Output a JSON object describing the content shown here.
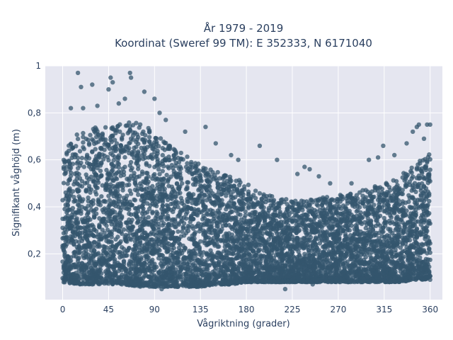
{
  "chart_data": {
    "type": "scatter",
    "title": "År 1979 - 2019",
    "subtitle": "Koordinat (Sweref 99 TM): E 352333, N 6171040",
    "xlabel": "Vågriktning (grader)",
    "ylabel": "Signifikant våghöjd (m)",
    "xlim": [
      -17,
      372
    ],
    "ylim": [
      0.005,
      1.0
    ],
    "x_ticks": [
      0,
      45,
      90,
      135,
      180,
      225,
      270,
      315,
      360
    ],
    "x_tick_labels": [
      "0",
      "45",
      "90",
      "135",
      "180",
      "225",
      "270",
      "315",
      "360"
    ],
    "y_ticks": [
      0.2,
      0.4,
      0.6,
      0.8,
      1.0
    ],
    "y_tick_labels": [
      "0,2",
      "0,4",
      "0,6",
      "0,8",
      "1"
    ],
    "grid": true,
    "legend": "none",
    "colors": {
      "marker": "#34566d",
      "plot_bg": "#e5e6f0",
      "grid": "#ffffff",
      "text": "#2a3f5f"
    },
    "envelope": {
      "x": [
        0,
        15,
        30,
        45,
        60,
        75,
        90,
        105,
        120,
        135,
        150,
        165,
        180,
        195,
        210,
        225,
        240,
        255,
        270,
        285,
        300,
        315,
        330,
        345,
        360
      ],
      "y_min": [
        0.08,
        0.07,
        0.07,
        0.07,
        0.07,
        0.06,
        0.06,
        0.06,
        0.06,
        0.06,
        0.07,
        0.07,
        0.08,
        0.08,
        0.08,
        0.08,
        0.08,
        0.08,
        0.08,
        0.08,
        0.08,
        0.08,
        0.08,
        0.09,
        0.09
      ],
      "y_max": [
        0.63,
        0.72,
        0.74,
        0.74,
        0.76,
        0.76,
        0.72,
        0.66,
        0.62,
        0.58,
        0.56,
        0.53,
        0.5,
        0.46,
        0.44,
        0.43,
        0.43,
        0.44,
        0.45,
        0.46,
        0.48,
        0.5,
        0.53,
        0.58,
        0.63
      ]
    },
    "outliers": [
      {
        "x": 15,
        "y": 0.97
      },
      {
        "x": 47,
        "y": 0.95
      },
      {
        "x": 66,
        "y": 0.97
      },
      {
        "x": 67,
        "y": 0.95
      },
      {
        "x": 49,
        "y": 0.93
      },
      {
        "x": 29,
        "y": 0.92
      },
      {
        "x": 18,
        "y": 0.91
      },
      {
        "x": 45,
        "y": 0.9
      },
      {
        "x": 80,
        "y": 0.89
      },
      {
        "x": 90,
        "y": 0.86
      },
      {
        "x": 61,
        "y": 0.86
      },
      {
        "x": 20,
        "y": 0.82
      },
      {
        "x": 8,
        "y": 0.82
      },
      {
        "x": 34,
        "y": 0.83
      },
      {
        "x": 55,
        "y": 0.84
      },
      {
        "x": 95,
        "y": 0.8
      },
      {
        "x": 101,
        "y": 0.77
      },
      {
        "x": 120,
        "y": 0.72
      },
      {
        "x": 140,
        "y": 0.74
      },
      {
        "x": 150,
        "y": 0.67
      },
      {
        "x": 165,
        "y": 0.62
      },
      {
        "x": 172,
        "y": 0.6
      },
      {
        "x": 193,
        "y": 0.66
      },
      {
        "x": 210,
        "y": 0.6
      },
      {
        "x": 230,
        "y": 0.54
      },
      {
        "x": 237,
        "y": 0.57
      },
      {
        "x": 242,
        "y": 0.56
      },
      {
        "x": 251,
        "y": 0.53
      },
      {
        "x": 262,
        "y": 0.5
      },
      {
        "x": 283,
        "y": 0.5
      },
      {
        "x": 300,
        "y": 0.6
      },
      {
        "x": 309,
        "y": 0.61
      },
      {
        "x": 314,
        "y": 0.66
      },
      {
        "x": 325,
        "y": 0.62
      },
      {
        "x": 337,
        "y": 0.67
      },
      {
        "x": 343,
        "y": 0.72
      },
      {
        "x": 347,
        "y": 0.74
      },
      {
        "x": 349,
        "y": 0.75
      },
      {
        "x": 357,
        "y": 0.75
      },
      {
        "x": 360,
        "y": 0.75
      },
      {
        "x": 354,
        "y": 0.69
      },
      {
        "x": 218,
        "y": 0.05
      },
      {
        "x": 245,
        "y": 0.07
      },
      {
        "x": 97,
        "y": 0.05
      }
    ]
  }
}
